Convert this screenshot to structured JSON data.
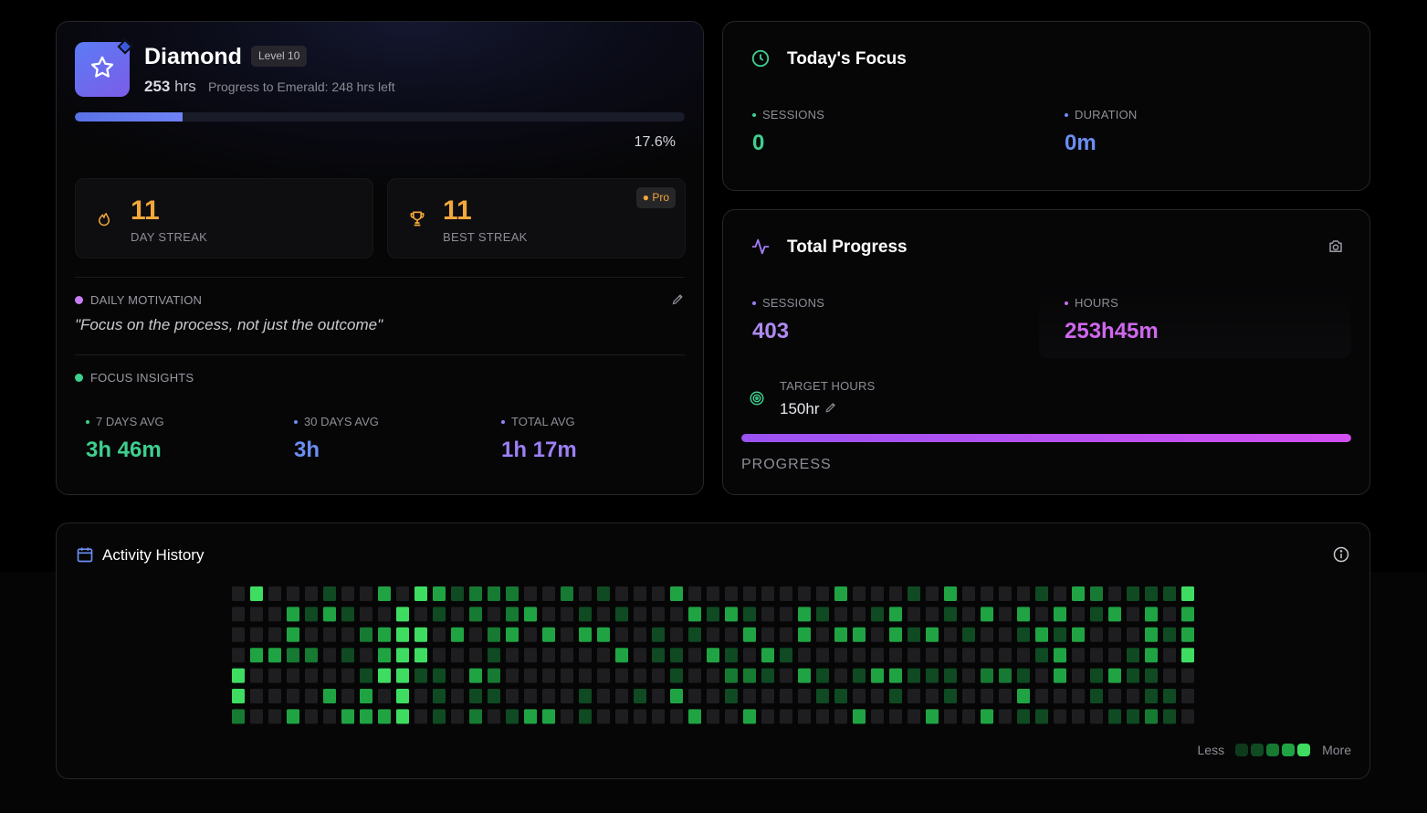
{
  "rank": {
    "title": "Diamond",
    "level": "Level 10",
    "hours_value": "253",
    "hours_unit": "hrs",
    "progress_note": "Progress to Emerald: 248 hrs left",
    "progress_percent": 17.6,
    "progress_label": "17.6%",
    "badge_icon": "star-icon"
  },
  "streaks": {
    "day": {
      "value": "11",
      "label": "DAY STREAK",
      "icon": "flame-icon"
    },
    "best": {
      "value": "11",
      "label": "BEST STREAK",
      "icon": "trophy-icon",
      "badge": "Pro"
    }
  },
  "motivation": {
    "label": "DAILY MOTIVATION",
    "quote": "\"Focus on the process, not just the outcome\"",
    "edit_icon": "pencil-icon"
  },
  "insights": {
    "label": "FOCUS INSIGHTS",
    "items": [
      {
        "label": "7 DAYS AVG",
        "value": "3h 46m",
        "color": "#3ecf8e"
      },
      {
        "label": "30 DAYS AVG",
        "value": "3h",
        "color": "#6b8ef2"
      },
      {
        "label": "TOTAL AVG",
        "value": "1h 17m",
        "color": "#9d7ff5"
      }
    ]
  },
  "today": {
    "title": "Today's Focus",
    "icon": "clock-icon",
    "sessions_label": "SESSIONS",
    "sessions_value": "0",
    "duration_label": "DURATION",
    "duration_value": "0m"
  },
  "total": {
    "title": "Total Progress",
    "icon": "activity-icon",
    "sessions_label": "SESSIONS",
    "sessions_value": "403",
    "hours_label": "HOURS",
    "hours_value": "253h45m",
    "target_label": "TARGET HOURS",
    "target_value": "150hr",
    "progress_label": "PROGRESS",
    "progress_percent": 100
  },
  "activity": {
    "title": "Activity History",
    "legend_less": "Less",
    "legend_more": "More",
    "levels": [
      "#1e1e20",
      "#0f4a22",
      "#167a32",
      "#20a443",
      "#3fdc62"
    ],
    "legend_colors": [
      "#0e3a1b",
      "#0f4a22",
      "#167a32",
      "#20a443",
      "#3fdc62"
    ],
    "weeks": [
      [
        0,
        0,
        0,
        0,
        4,
        4,
        2
      ],
      [
        4,
        0,
        0,
        3,
        0,
        0,
        0
      ],
      [
        0,
        0,
        0,
        3,
        0,
        0,
        0
      ],
      [
        0,
        3,
        3,
        2,
        0,
        0,
        3
      ],
      [
        0,
        1,
        0,
        2,
        0,
        0,
        0
      ],
      [
        1,
        3,
        0,
        0,
        0,
        3,
        0
      ],
      [
        0,
        1,
        0,
        1,
        0,
        0,
        3
      ],
      [
        0,
        0,
        2,
        0,
        1,
        3,
        3
      ],
      [
        3,
        0,
        3,
        3,
        4,
        0,
        3
      ],
      [
        0,
        4,
        4,
        4,
        4,
        4,
        4
      ],
      [
        4,
        0,
        4,
        4,
        1,
        0,
        0
      ],
      [
        3,
        1,
        0,
        0,
        1,
        1,
        1
      ],
      [
        1,
        0,
        3,
        0,
        0,
        0,
        0
      ],
      [
        2,
        2,
        0,
        0,
        3,
        1,
        2
      ],
      [
        2,
        0,
        2,
        1,
        2,
        1,
        0
      ],
      [
        2,
        2,
        3,
        0,
        0,
        0,
        1
      ],
      [
        0,
        3,
        0,
        0,
        0,
        0,
        3
      ],
      [
        0,
        0,
        3,
        0,
        0,
        0,
        3
      ],
      [
        2,
        0,
        0,
        0,
        0,
        0,
        0
      ],
      [
        0,
        1,
        3,
        0,
        0,
        1,
        1
      ],
      [
        1,
        0,
        3,
        0,
        0,
        0,
        0
      ],
      [
        0,
        1,
        0,
        3,
        0,
        0,
        0
      ],
      [
        0,
        0,
        0,
        0,
        0,
        1,
        0
      ],
      [
        0,
        0,
        1,
        1,
        0,
        0,
        0
      ],
      [
        3,
        0,
        0,
        1,
        1,
        3,
        0
      ],
      [
        0,
        3,
        1,
        0,
        0,
        0,
        3
      ],
      [
        0,
        1,
        0,
        3,
        0,
        0,
        0
      ],
      [
        0,
        3,
        0,
        1,
        2,
        1,
        0
      ],
      [
        0,
        1,
        3,
        0,
        2,
        0,
        3
      ],
      [
        0,
        0,
        0,
        3,
        1,
        0,
        0
      ],
      [
        0,
        0,
        0,
        1,
        0,
        0,
        0
      ],
      [
        0,
        3,
        3,
        0,
        3,
        0,
        0
      ],
      [
        0,
        1,
        0,
        0,
        1,
        1,
        0
      ],
      [
        3,
        0,
        3,
        0,
        0,
        1,
        0
      ],
      [
        0,
        0,
        3,
        0,
        1,
        0,
        3
      ],
      [
        0,
        1,
        0,
        0,
        3,
        0,
        0
      ],
      [
        0,
        3,
        3,
        0,
        3,
        1,
        0
      ],
      [
        1,
        0,
        1,
        0,
        1,
        0,
        0
      ],
      [
        0,
        0,
        3,
        0,
        1,
        0,
        3
      ],
      [
        3,
        1,
        0,
        0,
        1,
        1,
        0
      ],
      [
        0,
        0,
        1,
        0,
        0,
        0,
        0
      ],
      [
        0,
        3,
        0,
        0,
        2,
        0,
        3
      ],
      [
        0,
        0,
        0,
        0,
        2,
        0,
        0
      ],
      [
        0,
        3,
        1,
        0,
        1,
        3,
        1
      ],
      [
        1,
        0,
        3,
        1,
        0,
        0,
        1
      ],
      [
        0,
        3,
        1,
        3,
        3,
        0,
        0
      ],
      [
        3,
        0,
        3,
        0,
        0,
        0,
        0
      ],
      [
        2,
        1,
        0,
        0,
        1,
        1,
        0
      ],
      [
        0,
        3,
        0,
        0,
        3,
        0,
        1
      ],
      [
        1,
        0,
        0,
        1,
        1,
        0,
        1
      ],
      [
        1,
        3,
        3,
        3,
        1,
        1,
        2
      ],
      [
        1,
        0,
        1,
        0,
        0,
        1,
        1
      ],
      [
        4,
        3,
        3,
        4,
        0,
        0,
        0
      ]
    ]
  }
}
